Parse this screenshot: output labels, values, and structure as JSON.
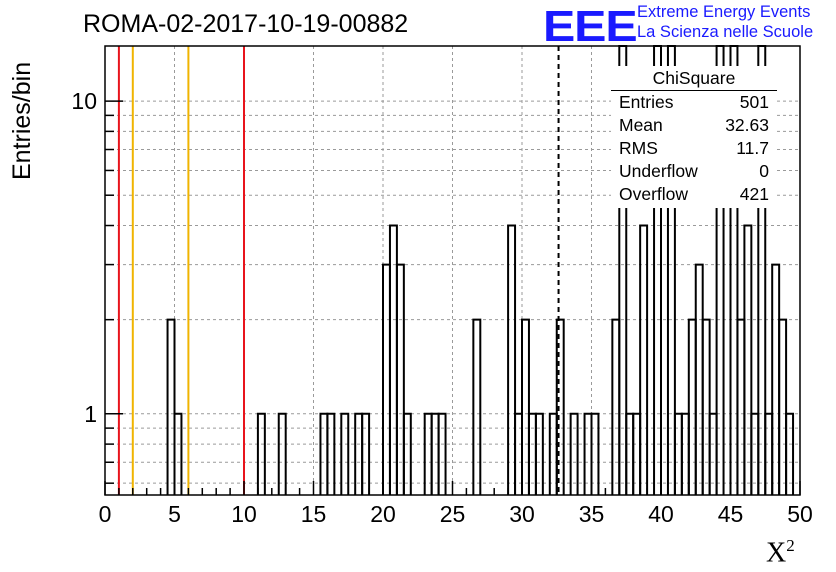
{
  "header": {
    "title": "ROMA-02-2017-10-19-00882",
    "logo_text": "EEE",
    "logo_line1": "Extreme Energy Events",
    "logo_line2": "La Scienza nelle Scuole",
    "brand_color": "#1a1aff"
  },
  "stats_box": {
    "title": "ChiSquare",
    "rows": [
      {
        "key": "Entries",
        "value": "501"
      },
      {
        "key": "Mean",
        "value": "32.63"
      },
      {
        "key": "RMS",
        "value": "11.7"
      },
      {
        "key": "Underflow",
        "value": "0"
      },
      {
        "key": "Overflow",
        "value": "421"
      }
    ]
  },
  "chart_data": {
    "type": "histogram",
    "ylabel": "Entries/bin",
    "xlabel": "X",
    "xlabel_superscript": "2",
    "xlim": [
      0,
      50
    ],
    "ylim": [
      0.55,
      15
    ],
    "y_scale": "log",
    "grid": true,
    "x_ticks": [
      0,
      5,
      10,
      15,
      20,
      25,
      30,
      35,
      40,
      45,
      50
    ],
    "y_tick_labels": [
      1,
      10
    ],
    "bin_width": 0.5,
    "bins": [
      {
        "x": 4.5,
        "y": 2
      },
      {
        "x": 5.0,
        "y": 1
      },
      {
        "x": 11.0,
        "y": 1
      },
      {
        "x": 12.5,
        "y": 1
      },
      {
        "x": 15.5,
        "y": 1
      },
      {
        "x": 16.0,
        "y": 1
      },
      {
        "x": 17.0,
        "y": 1
      },
      {
        "x": 18.0,
        "y": 1
      },
      {
        "x": 18.5,
        "y": 1
      },
      {
        "x": 20.0,
        "y": 3
      },
      {
        "x": 20.5,
        "y": 4
      },
      {
        "x": 21.0,
        "y": 3
      },
      {
        "x": 21.5,
        "y": 1
      },
      {
        "x": 23.0,
        "y": 1
      },
      {
        "x": 23.5,
        "y": 1
      },
      {
        "x": 24.0,
        "y": 1
      },
      {
        "x": 26.5,
        "y": 2
      },
      {
        "x": 29.0,
        "y": 4
      },
      {
        "x": 29.5,
        "y": 1
      },
      {
        "x": 30.0,
        "y": 2
      },
      {
        "x": 30.5,
        "y": 1
      },
      {
        "x": 31.0,
        "y": 1
      },
      {
        "x": 32.0,
        "y": 1
      },
      {
        "x": 32.5,
        "y": 2
      },
      {
        "x": 33.5,
        "y": 1
      },
      {
        "x": 34.5,
        "y": 1
      },
      {
        "x": 35.0,
        "y": 1
      },
      {
        "x": 36.5,
        "y": 2
      },
      {
        "x": 37.0,
        "y": 15
      },
      {
        "x": 37.5,
        "y": 1
      },
      {
        "x": 38.0,
        "y": 1
      },
      {
        "x": 38.5,
        "y": 4
      },
      {
        "x": 39.5,
        "y": 15
      },
      {
        "x": 40.5,
        "y": 15
      },
      {
        "x": 41.0,
        "y": 1
      },
      {
        "x": 41.5,
        "y": 1
      },
      {
        "x": 42.0,
        "y": 2
      },
      {
        "x": 42.5,
        "y": 3
      },
      {
        "x": 43.0,
        "y": 2
      },
      {
        "x": 43.5,
        "y": 1
      },
      {
        "x": 44.0,
        "y": 15
      },
      {
        "x": 45.0,
        "y": 15
      },
      {
        "x": 45.5,
        "y": 2
      },
      {
        "x": 46.0,
        "y": 4
      },
      {
        "x": 46.5,
        "y": 1
      },
      {
        "x": 47.0,
        "y": 15
      },
      {
        "x": 47.5,
        "y": 1
      },
      {
        "x": 48.0,
        "y": 3
      },
      {
        "x": 48.5,
        "y": 2
      },
      {
        "x": 49.0,
        "y": 1
      }
    ],
    "vertical_lines": [
      {
        "x": 1,
        "color": "#e8141c",
        "style": "solid"
      },
      {
        "x": 2,
        "color": "#f0b400",
        "style": "solid"
      },
      {
        "x": 6,
        "color": "#f0b400",
        "style": "solid"
      },
      {
        "x": 10,
        "color": "#e8141c",
        "style": "solid"
      },
      {
        "x": 32.63,
        "color": "#000000",
        "style": "dashed"
      }
    ]
  }
}
